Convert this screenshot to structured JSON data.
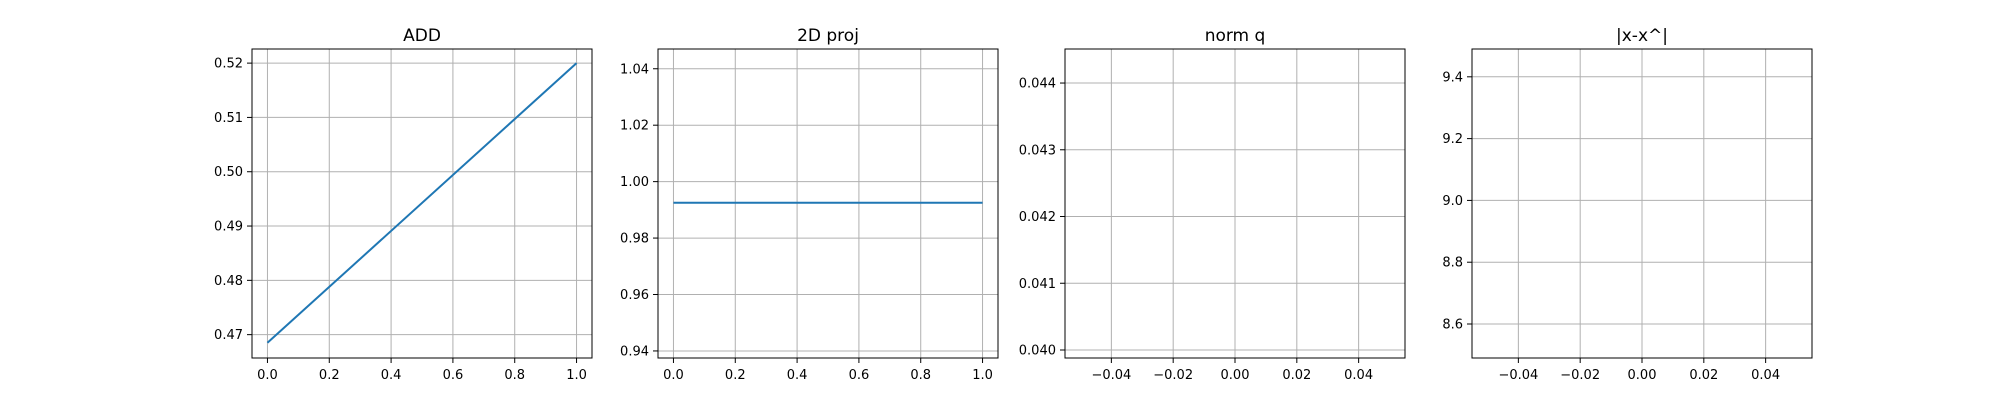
{
  "chart_data": [
    {
      "type": "line",
      "title": "ADD",
      "xlabel": "",
      "ylabel": "",
      "xlim": [
        -0.05,
        1.05
      ],
      "ylim": [
        0.4657,
        0.5226
      ],
      "xticks": [
        0.0,
        0.2,
        0.4,
        0.6,
        0.8,
        1.0
      ],
      "xtick_labels": [
        "0.0",
        "0.2",
        "0.4",
        "0.6",
        "0.8",
        "1.0"
      ],
      "yticks": [
        0.47,
        0.48,
        0.49,
        0.5,
        0.51,
        0.52
      ],
      "ytick_labels": [
        "0.47",
        "0.48",
        "0.49",
        "0.50",
        "0.51",
        "0.52"
      ],
      "grid": true,
      "series": [
        {
          "x": [
            0.0,
            1.0
          ],
          "y": [
            0.4685,
            0.52
          ]
        }
      ]
    },
    {
      "type": "line",
      "title": "2D proj",
      "xlabel": "",
      "ylabel": "",
      "xlim": [
        -0.05,
        1.05
      ],
      "ylim": [
        0.9375,
        1.047
      ],
      "xticks": [
        0.0,
        0.2,
        0.4,
        0.6,
        0.8,
        1.0
      ],
      "xtick_labels": [
        "0.0",
        "0.2",
        "0.4",
        "0.6",
        "0.8",
        "1.0"
      ],
      "yticks": [
        0.94,
        0.96,
        0.98,
        1.0,
        1.02,
        1.04
      ],
      "ytick_labels": [
        "0.94",
        "0.96",
        "0.98",
        "1.00",
        "1.02",
        "1.04"
      ],
      "grid": true,
      "series": [
        {
          "x": [
            0.0,
            1.0
          ],
          "y": [
            0.9925,
            0.9925
          ]
        }
      ]
    },
    {
      "type": "line",
      "title": "norm q",
      "xlabel": "",
      "ylabel": "",
      "xlim": [
        -0.055,
        0.055
      ],
      "ylim": [
        0.03988,
        0.04451
      ],
      "xticks": [
        -0.04,
        -0.02,
        0.0,
        0.02,
        0.04
      ],
      "xtick_labels": [
        "−0.04",
        "−0.02",
        "0.00",
        "0.02",
        "0.04"
      ],
      "yticks": [
        0.04,
        0.041,
        0.042,
        0.043,
        0.044
      ],
      "ytick_labels": [
        "0.040",
        "0.041",
        "0.042",
        "0.043",
        "0.044"
      ],
      "grid": true,
      "series": []
    },
    {
      "type": "line",
      "title": "|x-x^|",
      "xlabel": "",
      "ylabel": "",
      "xlim": [
        -0.055,
        0.055
      ],
      "ylim": [
        8.49,
        9.49
      ],
      "xticks": [
        -0.04,
        -0.02,
        0.0,
        0.02,
        0.04
      ],
      "xtick_labels": [
        "−0.04",
        "−0.02",
        "0.00",
        "0.02",
        "0.04"
      ],
      "yticks": [
        8.6,
        8.8,
        9.0,
        9.2,
        9.4
      ],
      "ytick_labels": [
        "8.6",
        "8.8",
        "9.0",
        "9.2",
        "9.4"
      ],
      "grid": true,
      "series": []
    }
  ],
  "colors": {
    "line": "#1f77b4",
    "grid": "#b0b0b0",
    "axes": "#000000",
    "background": "#ffffff"
  }
}
